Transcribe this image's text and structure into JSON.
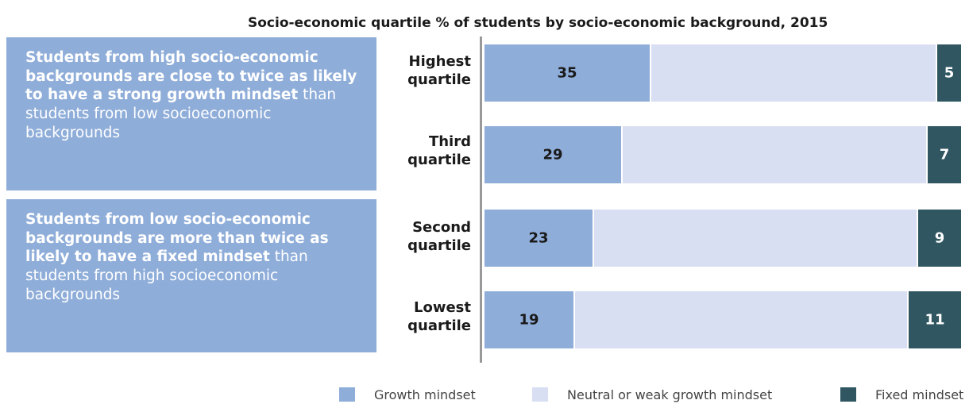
{
  "title": "Socio-economic quartile % of students by socio-economic background, 2015",
  "callouts": [
    {
      "bold": "Students from high socio-economic backgrounds are close to twice as likely to have a strong growth mindset",
      "normal": " than students from low socioeconomic backgrounds"
    },
    {
      "bold": "Students from low socio-economic backgrounds are more than twice as likely to have a fixed mindset",
      "normal": " than students from high socioeconomic backgrounds"
    }
  ],
  "colors": {
    "growth": "#8fadd9",
    "neutral": "#d9dff2",
    "fixed": "#2f5661",
    "callout_bg": "#8fadd9",
    "axis": "#999999"
  },
  "chart_data": {
    "type": "bar",
    "orientation": "horizontal",
    "stacked": true,
    "title": "Socio-economic quartile % of students by socio-economic background, 2015",
    "categories": [
      {
        "line1": "Highest",
        "line2": "quartile"
      },
      {
        "line1": "Third",
        "line2": "quartile"
      },
      {
        "line1": "Second",
        "line2": "quartile"
      },
      {
        "line1": "Lowest",
        "line2": "quartile"
      }
    ],
    "series": [
      {
        "name": "Growth mindset",
        "values": [
          35,
          29,
          23,
          19
        ],
        "labels": [
          "35",
          "29",
          "23",
          "19"
        ]
      },
      {
        "name": "Neutral or weak growth mindset",
        "values": [
          60,
          64,
          68,
          70
        ]
      },
      {
        "name": "Fixed mindset",
        "values": [
          5,
          7,
          9,
          11
        ],
        "labels": [
          "5",
          "7",
          "9",
          "11"
        ]
      }
    ],
    "xlim": [
      0,
      100
    ],
    "legend_position": "bottom"
  }
}
